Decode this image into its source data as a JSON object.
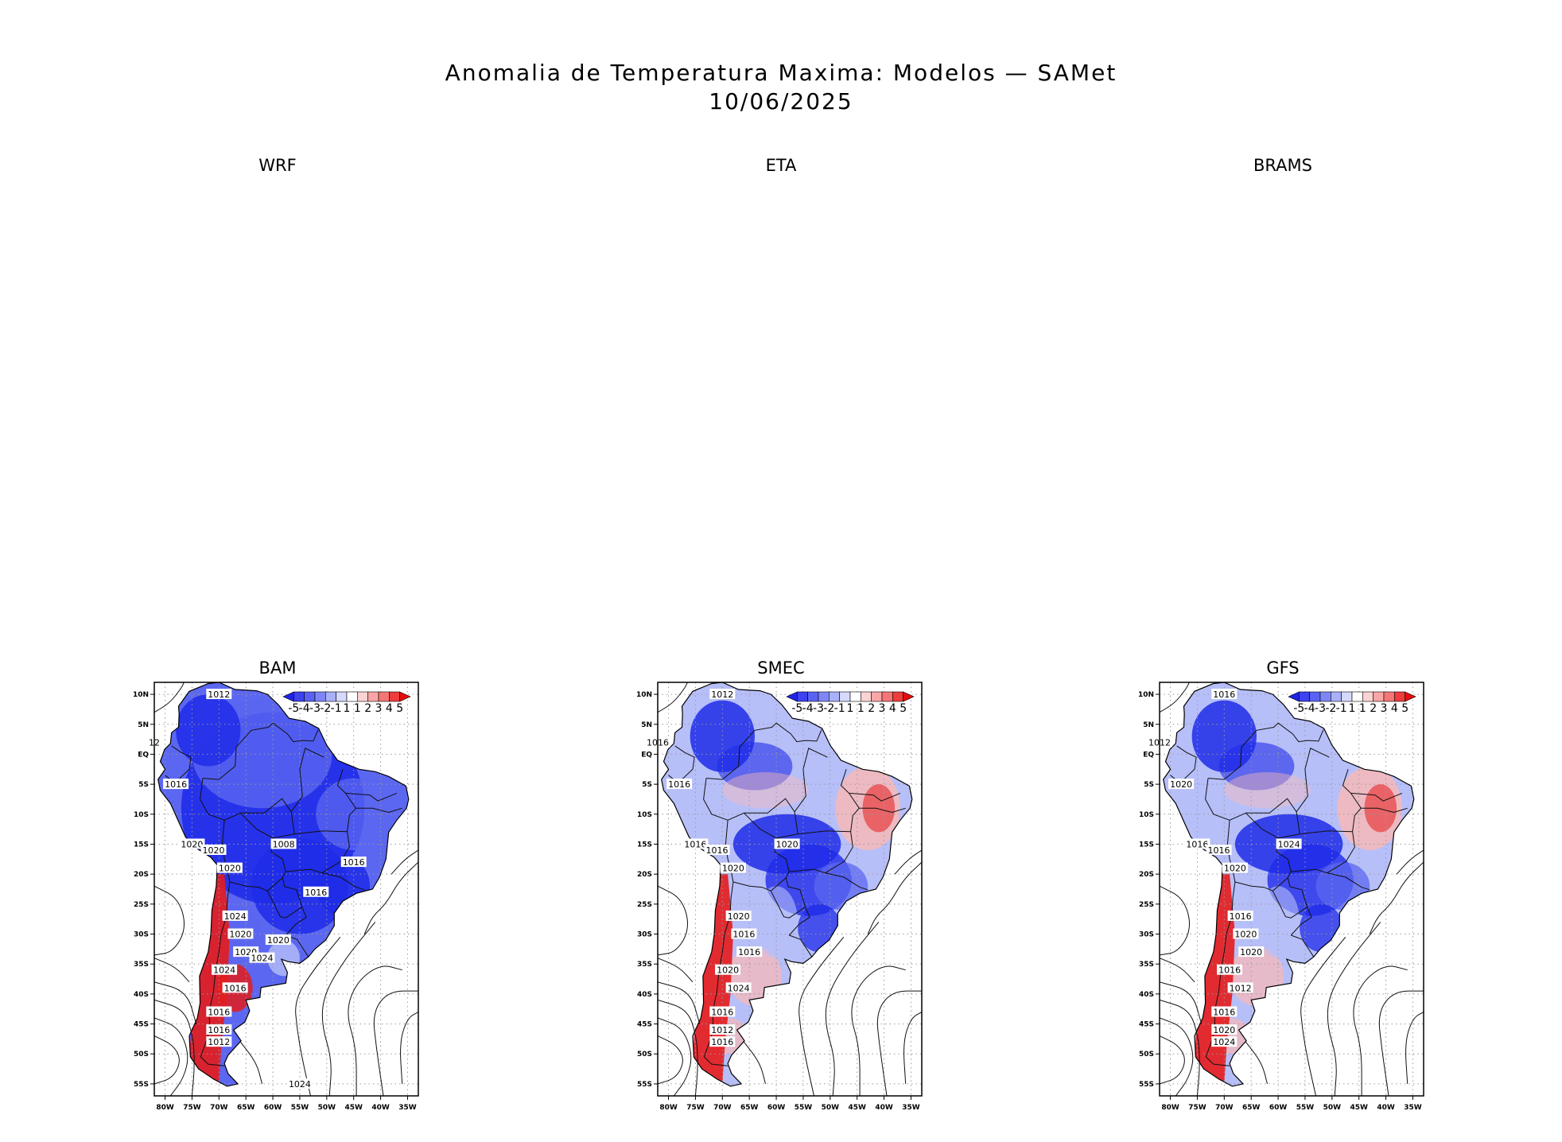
{
  "title": {
    "line1": "Anomalia de Temperatura Maxima: Modelos — SAMet",
    "line2": "10/06/2025"
  },
  "panels": [
    {
      "name": "WRF",
      "has_map": false
    },
    {
      "name": "ETA",
      "has_map": false
    },
    {
      "name": "BRAMS",
      "has_map": false
    },
    {
      "name": "BAM",
      "has_map": true,
      "anomaly": "cold",
      "contours": [
        "1012",
        "12",
        "1016",
        "1020",
        "1020",
        "1020",
        "1024",
        "1020",
        "1020",
        "1024",
        "1016",
        "1016",
        "1016",
        "1012",
        "1008",
        "1016",
        "1016",
        "1020",
        "1024",
        "1024"
      ]
    },
    {
      "name": "SMEC",
      "has_map": true,
      "anomaly": "mixed",
      "contours": [
        "1012",
        "1016",
        "1016",
        "1016",
        "1016",
        "1020",
        "1020",
        "1016",
        "1016",
        "1020",
        "1024",
        "1016",
        "1012",
        "1016",
        "1020"
      ]
    },
    {
      "name": "GFS",
      "has_map": true,
      "anomaly": "mixed",
      "contours": [
        "1016",
        "1012",
        "1020",
        "1016",
        "1016",
        "1020",
        "1016",
        "1020",
        "1020",
        "1016",
        "1012",
        "1016",
        "1020",
        "1024",
        "1024"
      ]
    }
  ],
  "chart_data": {
    "type": "heatmap",
    "variable": "Anomalia de Temperatura Maxima",
    "date": "10/06/2025",
    "x_ticks": [
      "80W",
      "75W",
      "70W",
      "65W",
      "60W",
      "55W",
      "50W",
      "45W",
      "40W",
      "35W"
    ],
    "y_ticks": [
      "10N",
      "5N",
      "EQ",
      "5S",
      "10S",
      "15S",
      "20S",
      "25S",
      "30S",
      "35S",
      "40S",
      "45S",
      "50S",
      "55S"
    ],
    "xlim": [
      -82,
      -33
    ],
    "ylim": [
      -57,
      12
    ],
    "colorbar": {
      "labels": [
        "-5",
        "-4",
        "-3",
        "-2",
        "-1",
        "1",
        "1",
        "2",
        "3",
        "4",
        "5"
      ],
      "colors": [
        "#1f23e6",
        "#3c43ef",
        "#5a62f3",
        "#7e86f6",
        "#a9b1f9",
        "#d5d9fc",
        "#ffffff",
        "#fcd3d3",
        "#f9a6a6",
        "#f57676",
        "#ef3c3c",
        "#e60d0d"
      ]
    }
  },
  "colors": {
    "cold_strong": "#1f2be8",
    "cold_mid": "#5b67f0",
    "cold_light": "#b7bff9",
    "warm_light": "#f7b8b8",
    "warm_strong": "#e51b1b",
    "ocean": "#ffffff",
    "grid": "#9a9a9a"
  }
}
